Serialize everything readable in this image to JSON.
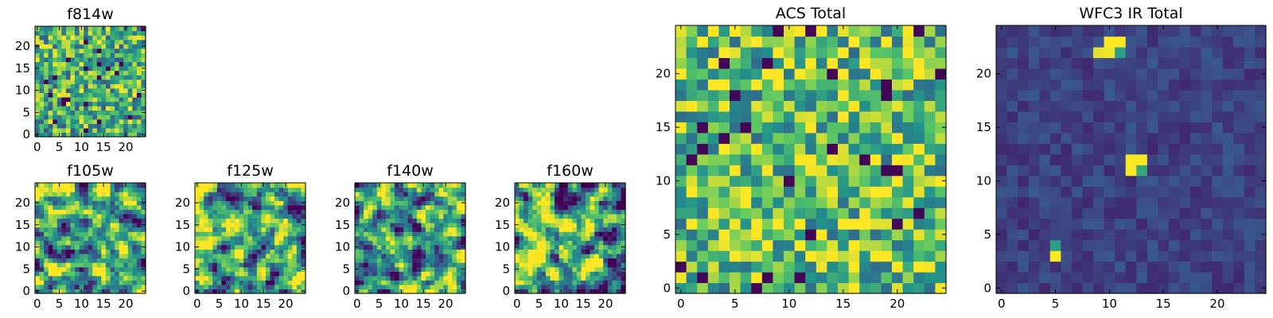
{
  "chart_data": [
    {
      "type": "heatmap",
      "title": "f814w",
      "xticks": [
        "0",
        "5",
        "10",
        "15",
        "20"
      ],
      "yticks": [
        "0",
        "5",
        "10",
        "15",
        "20"
      ],
      "xlim": [
        -0.5,
        24.5
      ],
      "ylim": [
        -0.5,
        24.5
      ],
      "colormap": "viridis",
      "value_range": [
        0,
        1
      ],
      "grid_size": 25,
      "seed": 11,
      "style": "noise",
      "bias": 0.62,
      "hot_spots": []
    },
    {
      "type": "heatmap",
      "title": "f105w",
      "xticks": [
        "0",
        "5",
        "10",
        "15",
        "20"
      ],
      "yticks": [
        "0",
        "5",
        "10",
        "15",
        "20"
      ],
      "xlim": [
        -0.5,
        24.5
      ],
      "ylim": [
        -0.5,
        24.5
      ],
      "colormap": "viridis",
      "value_range": [
        0,
        1
      ],
      "grid_size": 25,
      "seed": 23,
      "style": "smooth",
      "bias": 0.62,
      "hot_spots": []
    },
    {
      "type": "heatmap",
      "title": "f125w",
      "xticks": [
        "0",
        "5",
        "10",
        "15",
        "20"
      ],
      "yticks": [
        "0",
        "5",
        "10",
        "15",
        "20"
      ],
      "xlim": [
        -0.5,
        24.5
      ],
      "ylim": [
        -0.5,
        24.5
      ],
      "colormap": "viridis",
      "value_range": [
        0,
        1
      ],
      "grid_size": 25,
      "seed": 37,
      "style": "smooth",
      "bias": 0.6,
      "hot_spots": []
    },
    {
      "type": "heatmap",
      "title": "f140w",
      "xticks": [
        "0",
        "5",
        "10",
        "15",
        "20"
      ],
      "yticks": [
        "0",
        "5",
        "10",
        "15",
        "20"
      ],
      "xlim": [
        -0.5,
        24.5
      ],
      "ylim": [
        -0.5,
        24.5
      ],
      "colormap": "viridis",
      "value_range": [
        0,
        1
      ],
      "grid_size": 25,
      "seed": 41,
      "style": "smooth",
      "bias": 0.56,
      "hot_spots": []
    },
    {
      "type": "heatmap",
      "title": "f160w",
      "xticks": [
        "0",
        "5",
        "10",
        "15",
        "20"
      ],
      "yticks": [
        "0",
        "5",
        "10",
        "15",
        "20"
      ],
      "xlim": [
        -0.5,
        24.5
      ],
      "ylim": [
        -0.5,
        24.5
      ],
      "colormap": "viridis",
      "value_range": [
        0,
        1
      ],
      "grid_size": 25,
      "seed": 53,
      "style": "smooth",
      "bias": 0.62,
      "hot_spots": []
    },
    {
      "type": "heatmap",
      "title": "ACS Total",
      "xticks": [
        "0",
        "5",
        "10",
        "15",
        "20"
      ],
      "yticks": [
        "0",
        "5",
        "10",
        "15",
        "20"
      ],
      "xlim": [
        -0.5,
        24.5
      ],
      "ylim": [
        -0.5,
        24.5
      ],
      "colormap": "viridis",
      "value_range": [
        0,
        1
      ],
      "grid_size": 25,
      "seed": 67,
      "style": "noise",
      "bias": 0.7,
      "hot_spots": []
    },
    {
      "type": "heatmap",
      "title": "WFC3 IR Total",
      "xticks": [
        "0",
        "5",
        "10",
        "15",
        "20"
      ],
      "yticks": [
        "0",
        "5",
        "10",
        "15",
        "20"
      ],
      "xlim": [
        -0.5,
        24.5
      ],
      "ylim": [
        -0.5,
        24.5
      ],
      "colormap": "viridis",
      "value_range": [
        0,
        1
      ],
      "grid_size": 25,
      "seed": 79,
      "style": "dark",
      "bias": 0.2,
      "hot_spots": [
        {
          "col": 10,
          "row": 23,
          "value": 1.0
        },
        {
          "col": 11,
          "row": 23,
          "value": 1.0
        },
        {
          "col": 10,
          "row": 22,
          "value": 0.98
        },
        {
          "col": 9,
          "row": 22,
          "value": 0.96
        },
        {
          "col": 11,
          "row": 22,
          "value": 0.55
        },
        {
          "col": 12,
          "row": 12,
          "value": 1.0
        },
        {
          "col": 13,
          "row": 12,
          "value": 1.0
        },
        {
          "col": 12,
          "row": 11,
          "value": 1.0
        },
        {
          "col": 13,
          "row": 11,
          "value": 0.6
        },
        {
          "col": 5,
          "row": 4,
          "value": 0.55
        },
        {
          "col": 5,
          "row": 3,
          "value": 1.0
        }
      ]
    }
  ]
}
